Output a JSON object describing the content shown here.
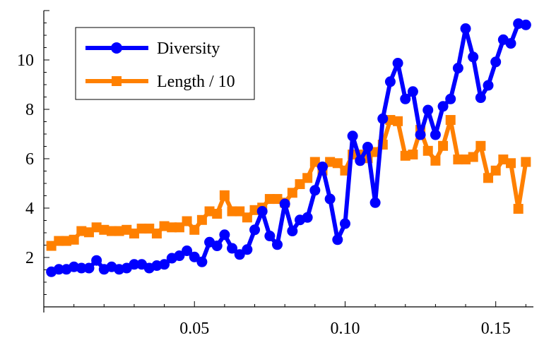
{
  "chart_data": {
    "type": "line",
    "title": "",
    "xlabel": "",
    "ylabel": "",
    "xlim": [
      0,
      0.1625
    ],
    "ylim": [
      0,
      12
    ],
    "x_ticks": [
      {
        "value": 0.05,
        "label": "0.05"
      },
      {
        "value": 0.1,
        "label": "0.10"
      },
      {
        "value": 0.15,
        "label": "0.15"
      }
    ],
    "y_ticks": [
      {
        "value": 2,
        "label": "2"
      },
      {
        "value": 4,
        "label": "4"
      },
      {
        "value": 6,
        "label": "6"
      },
      {
        "value": 8,
        "label": "8"
      },
      {
        "value": 10,
        "label": "10"
      }
    ],
    "grid": false,
    "legend_position": "top-left",
    "series": [
      {
        "name": "Diversity",
        "color": "#0000ff",
        "marker": "circle",
        "points": [
          [
            0.0025,
            1.42
          ],
          [
            0.005,
            1.52
          ],
          [
            0.0075,
            1.52
          ],
          [
            0.01,
            1.62
          ],
          [
            0.0125,
            1.57
          ],
          [
            0.015,
            1.57
          ],
          [
            0.0175,
            1.88
          ],
          [
            0.02,
            1.52
          ],
          [
            0.0225,
            1.62
          ],
          [
            0.025,
            1.52
          ],
          [
            0.0275,
            1.57
          ],
          [
            0.03,
            1.72
          ],
          [
            0.0325,
            1.72
          ],
          [
            0.035,
            1.57
          ],
          [
            0.0375,
            1.67
          ],
          [
            0.04,
            1.72
          ],
          [
            0.0425,
            1.97
          ],
          [
            0.045,
            2.07
          ],
          [
            0.0475,
            2.27
          ],
          [
            0.05,
            2.02
          ],
          [
            0.0525,
            1.82
          ],
          [
            0.055,
            2.62
          ],
          [
            0.0575,
            2.47
          ],
          [
            0.06,
            2.92
          ],
          [
            0.0625,
            2.37
          ],
          [
            0.065,
            2.12
          ],
          [
            0.0675,
            2.32
          ],
          [
            0.07,
            3.12
          ],
          [
            0.0725,
            3.87
          ],
          [
            0.075,
            2.87
          ],
          [
            0.0775,
            2.52
          ],
          [
            0.08,
            4.17
          ],
          [
            0.0825,
            3.07
          ],
          [
            0.085,
            3.52
          ],
          [
            0.0875,
            3.62
          ],
          [
            0.09,
            4.72
          ],
          [
            0.0925,
            5.67
          ],
          [
            0.095,
            4.37
          ],
          [
            0.0975,
            2.72
          ],
          [
            0.1,
            3.37
          ],
          [
            0.1025,
            6.92
          ],
          [
            0.105,
            5.92
          ],
          [
            0.1075,
            6.47
          ],
          [
            0.11,
            4.22
          ],
          [
            0.1125,
            7.62
          ],
          [
            0.115,
            9.12
          ],
          [
            0.1175,
            9.87
          ],
          [
            0.12,
            8.42
          ],
          [
            0.1225,
            8.72
          ],
          [
            0.125,
            6.97
          ],
          [
            0.1275,
            7.97
          ],
          [
            0.13,
            6.97
          ],
          [
            0.1325,
            8.12
          ],
          [
            0.135,
            8.42
          ],
          [
            0.1375,
            9.67
          ],
          [
            0.14,
            11.27
          ],
          [
            0.1425,
            10.12
          ],
          [
            0.145,
            8.47
          ],
          [
            0.1475,
            8.97
          ],
          [
            0.15,
            9.92
          ],
          [
            0.1525,
            10.82
          ],
          [
            0.155,
            10.67
          ],
          [
            0.1575,
            11.47
          ],
          [
            0.16,
            11.42
          ]
        ]
      },
      {
        "name": "Length / 10",
        "color": "#ff8000",
        "marker": "square",
        "points": [
          [
            0.0025,
            2.47
          ],
          [
            0.005,
            2.67
          ],
          [
            0.0075,
            2.67
          ],
          [
            0.01,
            2.72
          ],
          [
            0.0125,
            3.07
          ],
          [
            0.015,
            3.02
          ],
          [
            0.0175,
            3.22
          ],
          [
            0.02,
            3.12
          ],
          [
            0.0225,
            3.07
          ],
          [
            0.025,
            3.07
          ],
          [
            0.0275,
            3.12
          ],
          [
            0.03,
            2.97
          ],
          [
            0.0325,
            3.17
          ],
          [
            0.035,
            3.17
          ],
          [
            0.0375,
            2.97
          ],
          [
            0.04,
            3.27
          ],
          [
            0.0425,
            3.22
          ],
          [
            0.045,
            3.22
          ],
          [
            0.0475,
            3.47
          ],
          [
            0.05,
            3.12
          ],
          [
            0.0525,
            3.52
          ],
          [
            0.055,
            3.87
          ],
          [
            0.0575,
            3.77
          ],
          [
            0.06,
            4.52
          ],
          [
            0.0625,
            3.87
          ],
          [
            0.065,
            3.87
          ],
          [
            0.0675,
            3.62
          ],
          [
            0.07,
            3.92
          ],
          [
            0.0725,
            4.02
          ],
          [
            0.075,
            4.37
          ],
          [
            0.0775,
            4.37
          ],
          [
            0.08,
            4.22
          ],
          [
            0.0825,
            4.62
          ],
          [
            0.085,
            4.97
          ],
          [
            0.0875,
            5.22
          ],
          [
            0.09,
            5.87
          ],
          [
            0.0925,
            5.52
          ],
          [
            0.095,
            5.87
          ],
          [
            0.0975,
            5.82
          ],
          [
            0.1,
            5.52
          ],
          [
            0.1025,
            6.17
          ],
          [
            0.105,
            6.17
          ],
          [
            0.1075,
            6.02
          ],
          [
            0.11,
            6.27
          ],
          [
            0.1125,
            6.57
          ],
          [
            0.115,
            7.57
          ],
          [
            0.1175,
            7.52
          ],
          [
            0.12,
            6.12
          ],
          [
            0.1225,
            6.17
          ],
          [
            0.125,
            7.17
          ],
          [
            0.1275,
            6.32
          ],
          [
            0.13,
            5.92
          ],
          [
            0.1325,
            6.52
          ],
          [
            0.135,
            7.57
          ],
          [
            0.1375,
            5.97
          ],
          [
            0.14,
            5.97
          ],
          [
            0.1425,
            6.07
          ],
          [
            0.145,
            6.52
          ],
          [
            0.1475,
            5.22
          ],
          [
            0.15,
            5.52
          ],
          [
            0.1525,
            5.97
          ],
          [
            0.155,
            5.82
          ],
          [
            0.1575,
            3.97
          ],
          [
            0.16,
            5.87
          ]
        ]
      }
    ]
  }
}
